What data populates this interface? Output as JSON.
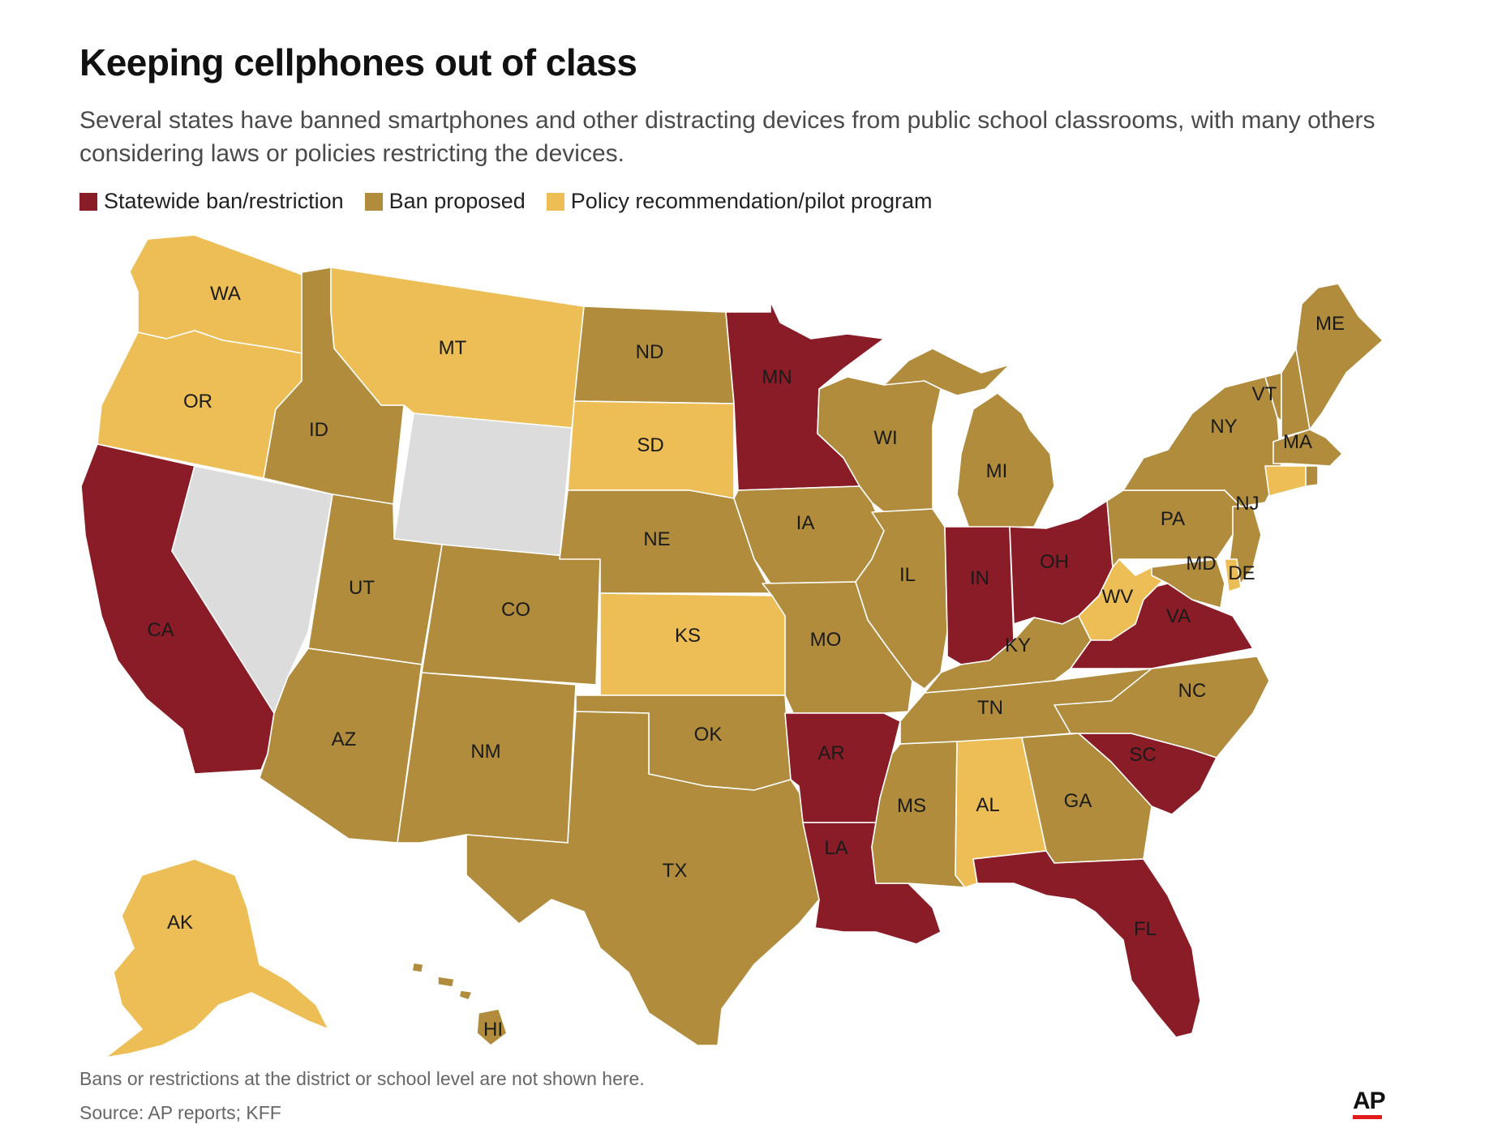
{
  "header": {
    "title": "Keeping cellphones out of class",
    "subtitle": "Several states have banned smartphones and other distracting devices from public school classrooms, with many others considering laws or policies restricting the devices."
  },
  "legend": {
    "items": [
      {
        "label": "Statewide ban/restriction",
        "color": "#8a1c27"
      },
      {
        "label": "Ban proposed",
        "color": "#b08c3c"
      },
      {
        "label": "Policy recommendation/pilot program",
        "color": "#ecbe55"
      }
    ]
  },
  "colors": {
    "ban": "#8a1c27",
    "proposed": "#b08c3c",
    "policy": "#ecbe55",
    "none": "#dcdcdc",
    "border": "#ffffff"
  },
  "states": {
    "WA": "WA",
    "OR": "OR",
    "CA": "CA",
    "NV": "",
    "ID": "ID",
    "MT": "MT",
    "WY": "",
    "UT": "UT",
    "AZ": "AZ",
    "CO": "CO",
    "NM": "NM",
    "ND": "ND",
    "SD": "SD",
    "NE": "NE",
    "KS": "KS",
    "OK": "OK",
    "TX": "TX",
    "MN": "MN",
    "IA": "IA",
    "MO": "MO",
    "AR": "AR",
    "LA": "LA",
    "WI": "WI",
    "IL": "IL",
    "MI": "MI",
    "IN": "IN",
    "OH": "OH",
    "KY": "KY",
    "TN": "TN",
    "MS": "MS",
    "AL": "AL",
    "GA": "GA",
    "FL": "FL",
    "SC": "SC",
    "NC": "NC",
    "VA": "VA",
    "WV": "WV",
    "PA": "PA",
    "NY": "NY",
    "VT": "VT",
    "NH": "",
    "ME": "ME",
    "MA": "MA",
    "CT": "",
    "RI": "",
    "NJ": "NJ",
    "DE": "DE",
    "MD": "MD",
    "AK": "AK",
    "HI": "HI"
  },
  "footer": {
    "note": "Bans or restrictions at the district or school level are not shown here.",
    "source": "Source: AP reports; KFF",
    "logo": "AP"
  }
}
